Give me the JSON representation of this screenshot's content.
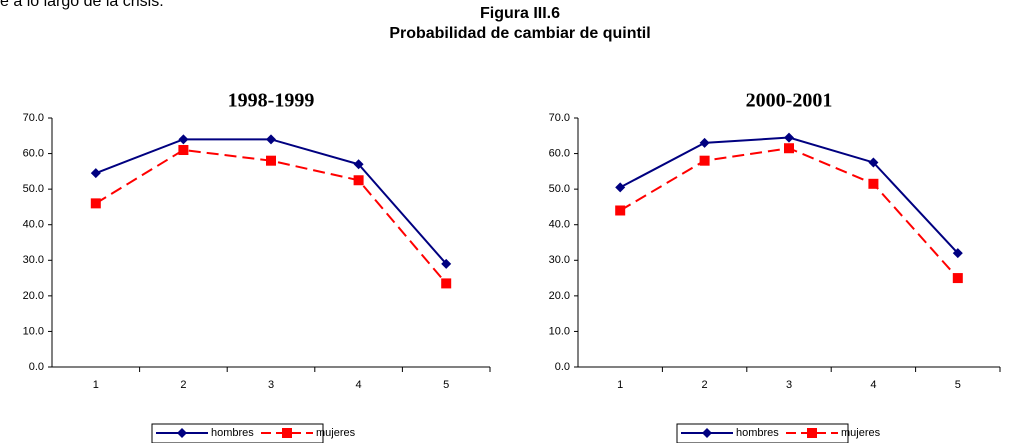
{
  "header_text": "e a lo largo de la crisis.",
  "figure": {
    "title": "Figura III.6",
    "subtitle": "Probabilidad de cambiar de quintil"
  },
  "chart_data": [
    {
      "type": "line",
      "title": "1998-1999",
      "categories": [
        "1",
        "2",
        "3",
        "4",
        "5"
      ],
      "ylim": [
        0,
        70
      ],
      "yticks": [
        {
          "value": 0,
          "label": "0.0"
        },
        {
          "value": 10,
          "label": "10.0"
        },
        {
          "value": 20,
          "label": "20.0"
        },
        {
          "value": 30,
          "label": "30.0"
        },
        {
          "value": 40,
          "label": "40.0"
        },
        {
          "value": 50,
          "label": "50.0"
        },
        {
          "value": 60,
          "label": "60.0"
        },
        {
          "value": 70,
          "label": "70.0"
        }
      ],
      "series": [
        {
          "name": "hombres",
          "color": "#000080",
          "marker": "diamond",
          "dashed": false,
          "values": [
            54.5,
            64,
            64,
            57,
            29
          ]
        },
        {
          "name": "mujeres",
          "color": "#ff0000",
          "marker": "square",
          "dashed": true,
          "values": [
            46,
            61,
            58,
            52.5,
            23.5
          ]
        }
      ]
    },
    {
      "type": "line",
      "title": "2000-2001",
      "categories": [
        "1",
        "2",
        "3",
        "4",
        "5"
      ],
      "ylim": [
        0,
        70
      ],
      "yticks": [
        {
          "value": 0,
          "label": "0.0"
        },
        {
          "value": 10,
          "label": "10.0"
        },
        {
          "value": 20,
          "label": "20.0"
        },
        {
          "value": 30,
          "label": "30.0"
        },
        {
          "value": 40,
          "label": "40.0"
        },
        {
          "value": 50,
          "label": "50.0"
        },
        {
          "value": 60,
          "label": "60.0"
        },
        {
          "value": 70,
          "label": "70.0"
        }
      ],
      "series": [
        {
          "name": "hombres",
          "color": "#000080",
          "marker": "diamond",
          "dashed": false,
          "values": [
            50.5,
            63,
            64.5,
            57.5,
            32
          ]
        },
        {
          "name": "mujeres",
          "color": "#ff0000",
          "marker": "square",
          "dashed": true,
          "values": [
            44,
            58,
            61.5,
            51.5,
            25
          ]
        }
      ]
    }
  ]
}
